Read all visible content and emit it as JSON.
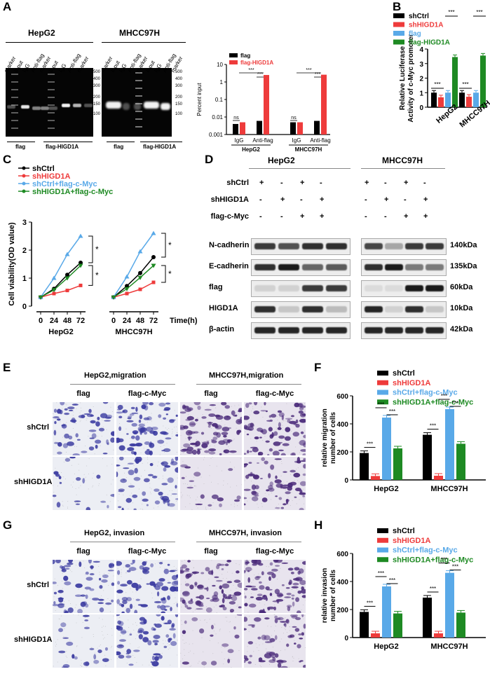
{
  "colors": {
    "black": "#000000",
    "red": "#ee3b3b",
    "blue": "#59a9e8",
    "green": "#1e8a23",
    "purple": "#3b3a9e"
  },
  "panelA": {
    "label": "A",
    "cell_lines": [
      "HepG2",
      "MHCC97H"
    ],
    "lane_labels_hepg2": [
      "marker",
      "Input",
      "IgG",
      "Anti-flag",
      "marker",
      "Input",
      "IgG",
      "Anti-flag",
      "marker"
    ],
    "lane_labels_mhcc": [
      "marker",
      "Input",
      "IgG",
      "Anti-flag",
      "marker",
      "Input",
      "IgG",
      "Anti-flag",
      "marker"
    ],
    "ladder_left": [
      "500",
      "400",
      "300",
      "200",
      "150",
      "100"
    ],
    "ladder_right": [
      "500",
      "400",
      "300",
      "200",
      "150",
      "100"
    ],
    "group_labels": [
      "flag",
      "flag-HIGD1A",
      "flag",
      "flag-HIGD1A"
    ],
    "chart_data": {
      "type": "bar",
      "log_scale": true,
      "ylabel": "Percent input",
      "yticks": [
        "0.001",
        "0.01",
        "0.1",
        "1",
        "10"
      ],
      "ylim": [
        0.001,
        10
      ],
      "categories": [
        "IgG",
        "Anti-flag",
        "IgG",
        "Anti-flag"
      ],
      "groups": [
        "HepG2",
        "MHCC97H"
      ],
      "series": [
        {
          "name": "flag",
          "color": "#000000",
          "values": [
            0.004,
            0.006,
            0.005,
            0.006
          ]
        },
        {
          "name": "flag-HIGD1A",
          "color": "#ee3b3b",
          "values": [
            0.005,
            2.5,
            0.005,
            2.6
          ]
        }
      ],
      "annotations": [
        "ns",
        "***",
        "***",
        "ns",
        "***",
        "***"
      ]
    }
  },
  "panelB": {
    "label": "B",
    "chart_data": {
      "type": "bar",
      "ylabel": "Relative Luciferase Activity of c-Myc promoter",
      "ylim": [
        0,
        4
      ],
      "yticks": [
        "0",
        "1",
        "2",
        "3",
        "4"
      ],
      "categories": [
        "HepG2",
        "MHCC97H"
      ],
      "series": [
        {
          "name": "shCtrl",
          "color": "#000000",
          "values": [
            1.0,
            1.0
          ]
        },
        {
          "name": "shHIGD1A",
          "color": "#ee3b3b",
          "values": [
            0.68,
            0.72
          ]
        },
        {
          "name": "flag",
          "color": "#59a9e8",
          "values": [
            1.0,
            1.0
          ]
        },
        {
          "name": "flag-HIGD1A",
          "color": "#1e8a23",
          "values": [
            3.45,
            3.55
          ]
        }
      ],
      "annotations": [
        "***",
        "***",
        "***",
        "***"
      ]
    }
  },
  "panelC": {
    "label": "C",
    "chart_data": {
      "type": "line",
      "ylabel": "Cell viability(OD value)",
      "xlabel": "Time(h)",
      "x": [
        0,
        24,
        48,
        72
      ],
      "ylim": [
        0,
        3
      ],
      "yticks": [
        "0",
        "1",
        "2",
        "3"
      ],
      "groups": [
        "HepG2",
        "MHCC97H"
      ],
      "series": [
        {
          "name": "shCtrl",
          "color": "#000000",
          "hepg2": [
            0.32,
            0.62,
            1.12,
            1.55
          ],
          "mhcc": [
            0.32,
            0.72,
            1.18,
            1.75
          ]
        },
        {
          "name": "shHIGD1A",
          "color": "#ee3b3b",
          "hepg2": [
            0.32,
            0.45,
            0.56,
            0.74
          ],
          "mhcc": [
            0.32,
            0.45,
            0.6,
            0.85
          ]
        },
        {
          "name": "shCtrl+flag-c-Myc",
          "color": "#59a9e8",
          "hepg2": [
            0.32,
            1.0,
            1.85,
            2.5
          ],
          "mhcc": [
            0.32,
            1.05,
            1.95,
            2.6
          ]
        },
        {
          "name": "shHIGD1A+flag-c-Myc",
          "color": "#1e8a23",
          "hepg2": [
            0.32,
            0.58,
            1.0,
            1.45
          ],
          "mhcc": [
            0.32,
            0.62,
            1.02,
            1.45
          ]
        }
      ],
      "annotations": [
        "*",
        "*",
        "*",
        "*"
      ]
    }
  },
  "panelD": {
    "label": "D",
    "cell_lines": [
      "HepG2",
      "MHCC97H"
    ],
    "conditions": [
      {
        "name": "shCtrl",
        "signs": [
          "+",
          "-",
          "+",
          "-",
          "+",
          "-",
          "+",
          "-"
        ]
      },
      {
        "name": "shHIGD1A",
        "signs": [
          "-",
          "+",
          "-",
          "+",
          "-",
          "+",
          "-",
          "+"
        ]
      },
      {
        "name": "flag-c-Myc",
        "signs": [
          "-",
          "-",
          "+",
          "+",
          "-",
          "-",
          "+",
          "+"
        ]
      }
    ],
    "proteins": [
      {
        "name": "N-cadherin",
        "kda": "140kDa",
        "intensity": [
          0.8,
          0.7,
          0.85,
          0.85,
          0.75,
          0.3,
          0.8,
          0.8
        ]
      },
      {
        "name": "E-cadherin",
        "kda": "135kDa",
        "intensity": [
          0.85,
          0.95,
          0.6,
          0.65,
          0.85,
          0.95,
          0.5,
          0.5
        ]
      },
      {
        "name": "flag",
        "kda": "60kDa",
        "intensity": [
          0.1,
          0.1,
          0.8,
          0.8,
          0.05,
          0.05,
          0.95,
          0.95
        ]
      },
      {
        "name": "HIGD1A",
        "kda": "10kDa",
        "intensity": [
          0.85,
          0.15,
          0.85,
          0.2,
          0.9,
          0.1,
          0.85,
          0.15
        ]
      },
      {
        "name": "β-actin",
        "kda": "42kDa",
        "intensity": [
          0.9,
          0.9,
          0.9,
          0.9,
          0.9,
          0.9,
          0.9,
          0.9
        ]
      }
    ]
  },
  "panelE": {
    "label": "E",
    "headers": [
      "HepG2,migration",
      "MHCC97H,migration"
    ],
    "col_labels": [
      "flag",
      "flag-c-Myc",
      "flag",
      "flag-c-Myc"
    ],
    "row_labels": [
      "shCtrl",
      "shHIGD1A"
    ],
    "density": [
      [
        0.55,
        0.75,
        0.85,
        0.8
      ],
      [
        0.12,
        0.5,
        0.1,
        0.65
      ]
    ]
  },
  "panelF": {
    "label": "F",
    "chart_data": {
      "type": "bar",
      "ylabel": "relative migration number of cells",
      "ylim": [
        0,
        600
      ],
      "yticks": [
        "0",
        "200",
        "400",
        "600"
      ],
      "categories": [
        "HepG2",
        "MHCC97H"
      ],
      "series": [
        {
          "name": "shCtrl",
          "color": "#000000",
          "values": [
            192,
            322
          ]
        },
        {
          "name": "shHIGD1A",
          "color": "#ee3b3b",
          "values": [
            28,
            30
          ]
        },
        {
          "name": "shCtrl+flag-c-Myc",
          "color": "#59a9e8",
          "values": [
            445,
            505
          ]
        },
        {
          "name": "shHIGD1A+flag-c-Myc",
          "color": "#1e8a23",
          "values": [
            225,
            258
          ]
        }
      ],
      "annotations": [
        "***",
        "***",
        "***",
        "***",
        "***",
        "***"
      ]
    }
  },
  "panelG": {
    "label": "G",
    "headers": [
      "HepG2, invasion",
      "MHCC97H, invasion"
    ],
    "col_labels": [
      "flag",
      "flag-c-Myc",
      "flag",
      "flag-c-Myc"
    ],
    "row_labels": [
      "shCtrl",
      "shHIGD1A"
    ],
    "density": [
      [
        0.55,
        0.7,
        0.8,
        0.85
      ],
      [
        0.15,
        0.55,
        0.1,
        0.6
      ]
    ]
  },
  "panelH": {
    "label": "H",
    "chart_data": {
      "type": "bar",
      "ylabel": "relative invasion number of cells",
      "ylim": [
        0,
        600
      ],
      "yticks": [
        "0",
        "200",
        "400",
        "600"
      ],
      "categories": [
        "HepG2",
        "MHCC97H"
      ],
      "series": [
        {
          "name": "shCtrl",
          "color": "#000000",
          "values": [
            183,
            285
          ]
        },
        {
          "name": "shHIGD1A",
          "color": "#ee3b3b",
          "values": [
            30,
            30
          ]
        },
        {
          "name": "shCtrl+flag-c-Myc",
          "color": "#59a9e8",
          "values": [
            365,
            462
          ]
        },
        {
          "name": "shHIGD1A+flag-c-Myc",
          "color": "#1e8a23",
          "values": [
            172,
            178
          ]
        }
      ],
      "annotations": [
        "***",
        "***",
        "***",
        "***",
        "***",
        "***"
      ]
    }
  }
}
